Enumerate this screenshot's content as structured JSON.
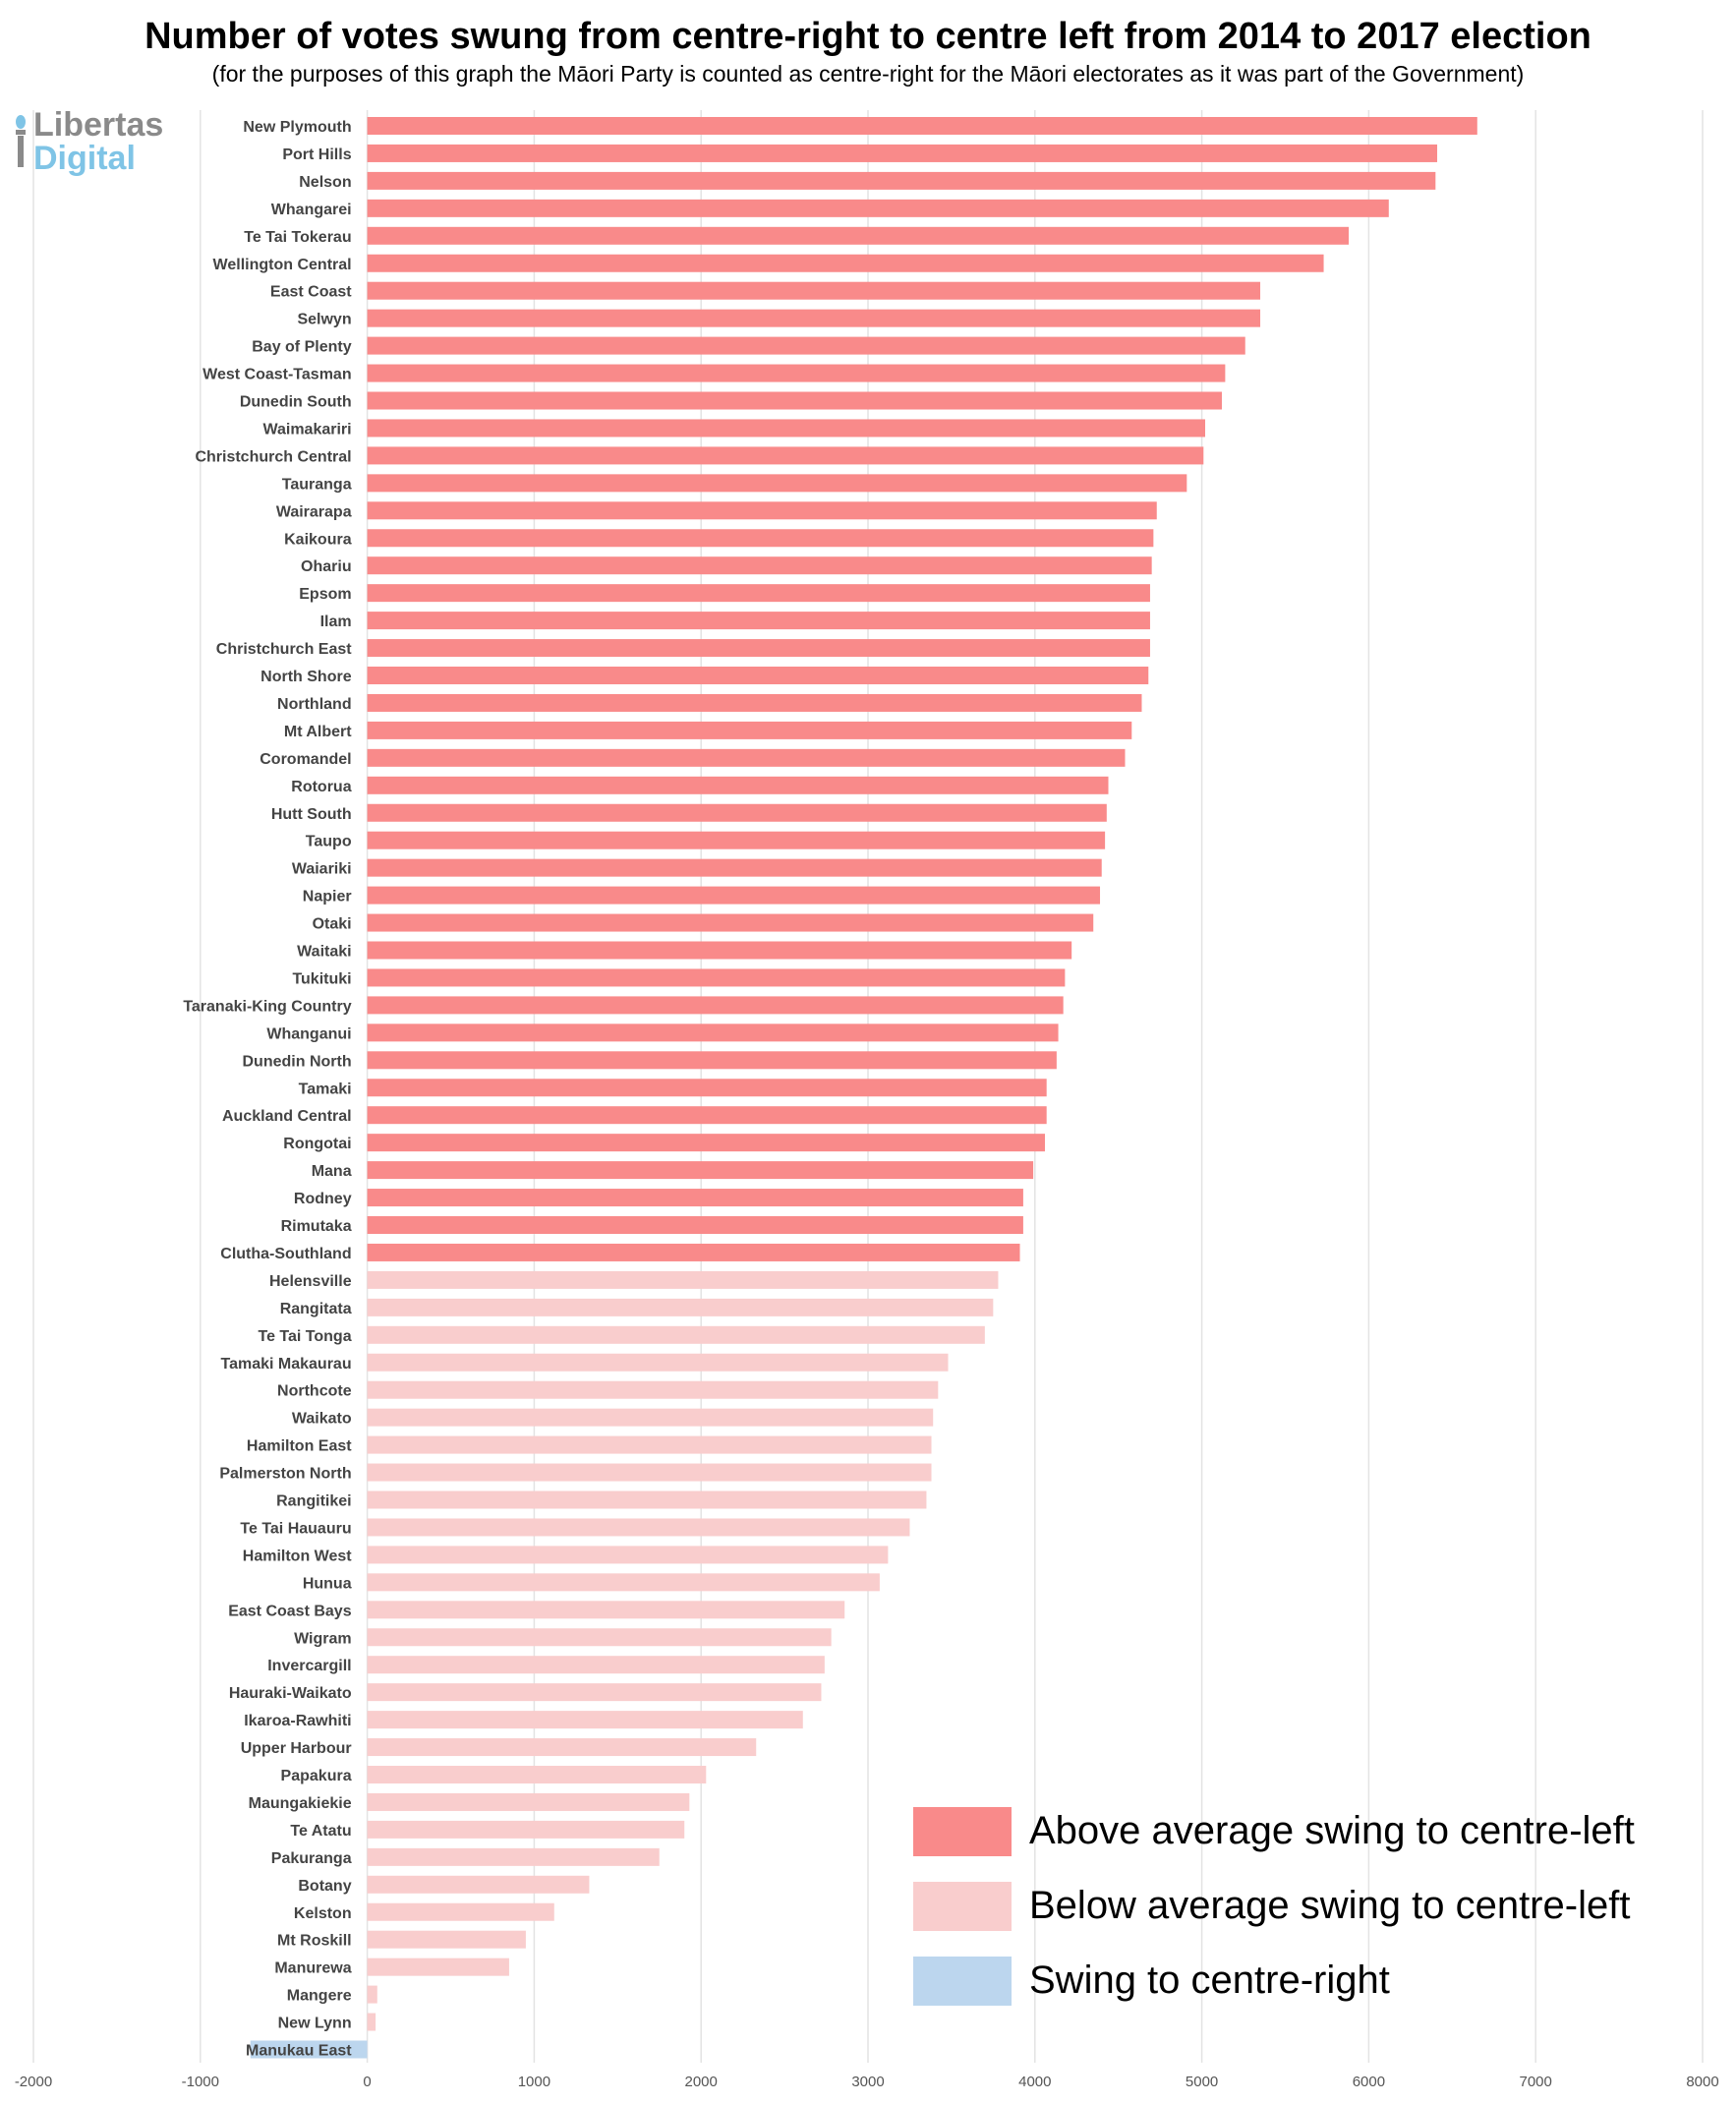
{
  "title": "Number of votes swung from centre-right to centre left from 2014 to 2017 election",
  "subtitle": "(for the purposes of this graph the Māori Party is counted as centre-right for the Māori electorates as it was part of the Government)",
  "logo": {
    "line1": "Libertas",
    "line2": "Digital"
  },
  "colors": {
    "above": "#f98a8a",
    "below": "#f9cdcd",
    "right": "#bcd6ee",
    "grid": "#e3e3e3",
    "label": "#444444",
    "tick": "#555555"
  },
  "legend": [
    {
      "label": "Above average swing to centre-left",
      "color_key": "above"
    },
    {
      "label": "Below average swing to centre-left",
      "color_key": "below"
    },
    {
      "label": "Swing to centre-right",
      "color_key": "right"
    }
  ],
  "chart_data": {
    "type": "bar",
    "orientation": "horizontal",
    "title": "Number of votes swung from centre-right to centre left from 2014 to 2017 election",
    "xlim": [
      -2000,
      8000
    ],
    "xticks": [
      -2000,
      -1000,
      0,
      1000,
      2000,
      3000,
      4000,
      5000,
      6000,
      7000,
      8000
    ],
    "grid": true,
    "legend_position": "bottom-right",
    "categories": [
      "New Plymouth",
      "Port Hills",
      "Nelson",
      "Whangarei",
      "Te Tai Tokerau",
      "Wellington Central",
      "East Coast",
      "Selwyn",
      "Bay of Plenty",
      "West Coast-Tasman",
      "Dunedin South",
      "Waimakariri",
      "Christchurch Central",
      "Tauranga",
      "Wairarapa",
      "Kaikoura",
      "Ohariu",
      "Epsom",
      "Ilam",
      "Christchurch East",
      "North Shore",
      "Northland",
      "Mt Albert",
      "Coromandel",
      "Rotorua",
      "Hutt South",
      "Taupo",
      "Waiariki",
      "Napier",
      "Otaki",
      "Waitaki",
      "Tukituki",
      "Taranaki-King Country",
      "Whanganui",
      "Dunedin North",
      "Tamaki",
      "Auckland Central",
      "Rongotai",
      "Mana",
      "Rodney",
      "Rimutaka",
      "Clutha-Southland",
      "Helensville",
      "Rangitata",
      "Te Tai Tonga",
      "Tamaki Makaurau",
      "Northcote",
      "Waikato",
      "Hamilton East",
      "Palmerston North",
      "Rangitikei",
      "Te Tai Hauauru",
      "Hamilton West",
      "Hunua",
      "East Coast Bays",
      "Wigram",
      "Invercargill",
      "Hauraki-Waikato",
      "Ikaroa-Rawhiti",
      "Upper Harbour",
      "Papakura",
      "Maungakiekie",
      "Te Atatu",
      "Pakuranga",
      "Botany",
      "Kelston",
      "Mt Roskill",
      "Manurewa",
      "Mangere",
      "New Lynn",
      "Manukau East"
    ],
    "values": [
      6650,
      6410,
      6400,
      6120,
      5880,
      5730,
      5350,
      5350,
      5260,
      5140,
      5120,
      5020,
      5010,
      4910,
      4730,
      4710,
      4700,
      4690,
      4690,
      4690,
      4680,
      4640,
      4580,
      4540,
      4440,
      4430,
      4420,
      4400,
      4390,
      4350,
      4220,
      4180,
      4170,
      4140,
      4130,
      4070,
      4070,
      4060,
      3990,
      3930,
      3930,
      3910,
      3780,
      3750,
      3700,
      3480,
      3420,
      3390,
      3380,
      3380,
      3350,
      3250,
      3120,
      3070,
      2860,
      2780,
      2740,
      2720,
      2610,
      2330,
      2030,
      1930,
      1900,
      1750,
      1330,
      1120,
      950,
      850,
      60,
      50,
      -700
    ],
    "groups": [
      "above",
      "above",
      "above",
      "above",
      "above",
      "above",
      "above",
      "above",
      "above",
      "above",
      "above",
      "above",
      "above",
      "above",
      "above",
      "above",
      "above",
      "above",
      "above",
      "above",
      "above",
      "above",
      "above",
      "above",
      "above",
      "above",
      "above",
      "above",
      "above",
      "above",
      "above",
      "above",
      "above",
      "above",
      "above",
      "above",
      "above",
      "above",
      "above",
      "above",
      "above",
      "above",
      "below",
      "below",
      "below",
      "below",
      "below",
      "below",
      "below",
      "below",
      "below",
      "below",
      "below",
      "below",
      "below",
      "below",
      "below",
      "below",
      "below",
      "below",
      "below",
      "below",
      "below",
      "below",
      "below",
      "below",
      "below",
      "below",
      "below",
      "below",
      "right"
    ]
  }
}
